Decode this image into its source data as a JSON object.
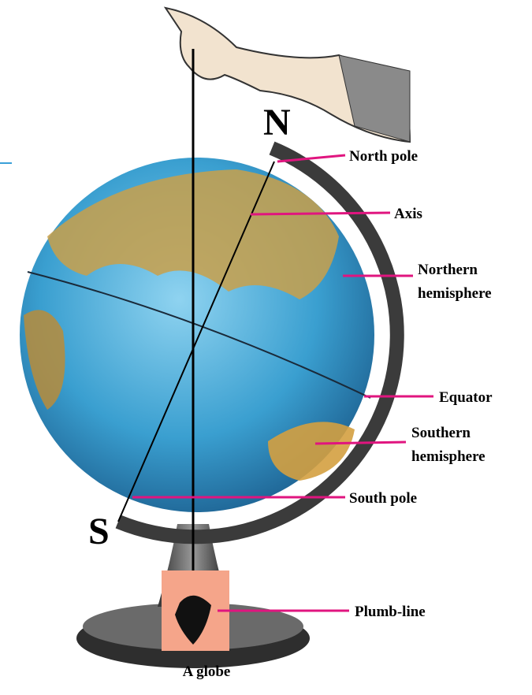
{
  "poles": {
    "north": "N",
    "south": "S"
  },
  "labels": [
    {
      "lines": [
        "North pole"
      ]
    },
    {
      "lines": [
        "Axis"
      ]
    },
    {
      "lines": [
        "Northern",
        "hemisphere"
      ]
    },
    {
      "lines": [
        "Equator"
      ]
    },
    {
      "lines": [
        "Southern",
        "hemisphere"
      ]
    },
    {
      "lines": [
        "South pole"
      ]
    },
    {
      "lines": [
        "Plumb-line"
      ]
    }
  ],
  "caption": "A globe"
}
